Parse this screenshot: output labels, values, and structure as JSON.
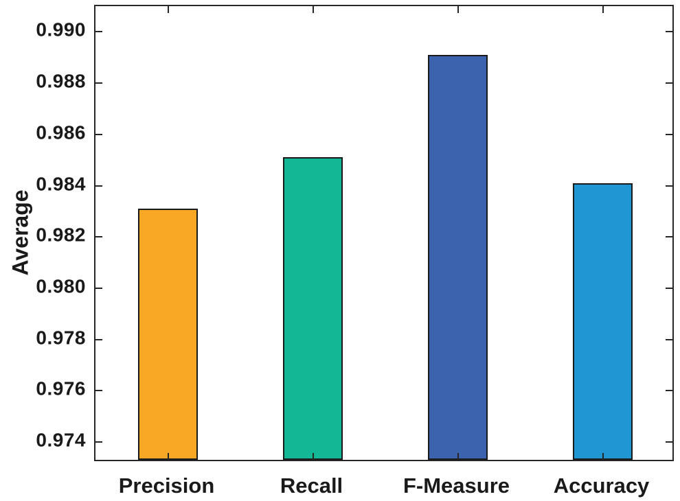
{
  "figure": {
    "background_color": "#ffffff",
    "axis_color": "#262626",
    "text_color": "#1a1a1a"
  },
  "chart_data": {
    "type": "bar",
    "title": "",
    "categories": [
      "Precision",
      "Recall",
      "F-Measure",
      "Accuracy"
    ],
    "values": [
      0.983,
      0.985,
      0.989,
      0.984
    ],
    "bar_colors": [
      "#F9A826",
      "#14B795",
      "#3B63AE",
      "#2096D2"
    ],
    "bar_edge_color": "#1a1a1a",
    "xlabel": "",
    "ylabel": "Average",
    "ylim": [
      0.9732,
      0.991
    ],
    "yticks": [
      "0.974",
      "0.976",
      "0.978",
      "0.980",
      "0.982",
      "0.984",
      "0.986",
      "0.988",
      "0.990"
    ],
    "grid": false,
    "legend": null,
    "bar_width_fraction": 0.41,
    "tick_direction": "in",
    "box": true
  }
}
